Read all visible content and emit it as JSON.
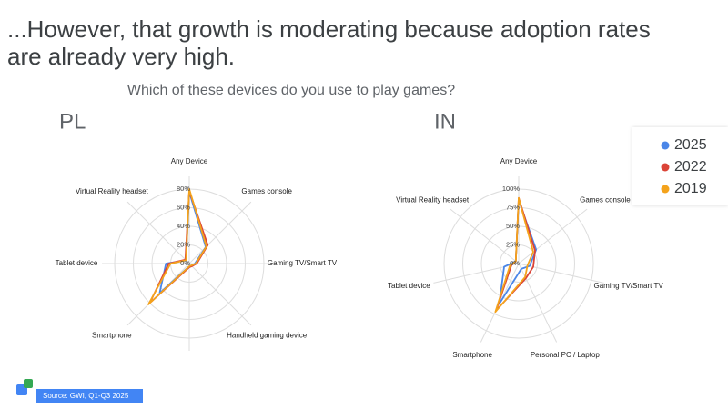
{
  "header": {
    "title_lines": [
      "...However, that growth is moderating because adoption rates",
      "are already very high."
    ],
    "subtitle": "Which of these devices do you use to play games?"
  },
  "source": "Source: GWI, Q1-Q3 2025",
  "chart_data": [
    {
      "type": "radar",
      "title": "PL",
      "categories": [
        "Any Device",
        "Games console",
        "Gaming TV/Smart TV",
        "Handheld gaming device",
        null,
        "Smartphone",
        "Tablet device",
        "Virtual Reality headset"
      ],
      "ylim": [
        0,
        80
      ],
      "yticks": [
        {
          "value": 0,
          "label": "0%"
        },
        {
          "value": 20,
          "label": "20%"
        },
        {
          "value": 40,
          "label": "40%"
        },
        {
          "value": 60,
          "label": "60%"
        },
        {
          "value": 80,
          "label": "80%"
        }
      ],
      "grid": true,
      "series": [
        {
          "name": "2025",
          "color": "#4a86e8",
          "values": [
            77,
            25,
            6,
            3,
            3,
            45,
            25,
            5
          ]
        },
        {
          "name": "2022",
          "color": "#db4437",
          "values": [
            78,
            28,
            8,
            4,
            4,
            60,
            22,
            6
          ]
        },
        {
          "name": "2019",
          "color": "#f4a31c",
          "values": [
            80,
            26,
            7,
            3,
            3,
            62,
            20,
            5
          ]
        }
      ]
    },
    {
      "type": "radar",
      "title": "IN",
      "categories": [
        "Any Device",
        "Games console",
        "Gaming TV/Smart TV",
        "Personal PC / Laptop",
        "Smartphone",
        "Tablet device",
        "Virtual Reality headset"
      ],
      "ylim": [
        0,
        100
      ],
      "yticks": [
        {
          "value": 0,
          "label": "0%"
        },
        {
          "value": 25,
          "label": "25%"
        },
        {
          "value": 50,
          "label": "50%"
        },
        {
          "value": 75,
          "label": "75%"
        },
        {
          "value": 100,
          "label": "100%"
        }
      ],
      "grid": true,
      "legend": "top-right",
      "series": [
        {
          "name": "2025",
          "color": "#4a86e8",
          "values": [
            85,
            30,
            15,
            8,
            60,
            20,
            5
          ]
        },
        {
          "name": "2022",
          "color": "#db4437",
          "values": [
            88,
            28,
            20,
            22,
            70,
            10,
            5
          ]
        },
        {
          "name": "2019",
          "color": "#f4a31c",
          "values": [
            88,
            25,
            12,
            20,
            72,
            12,
            5
          ]
        }
      ]
    }
  ]
}
